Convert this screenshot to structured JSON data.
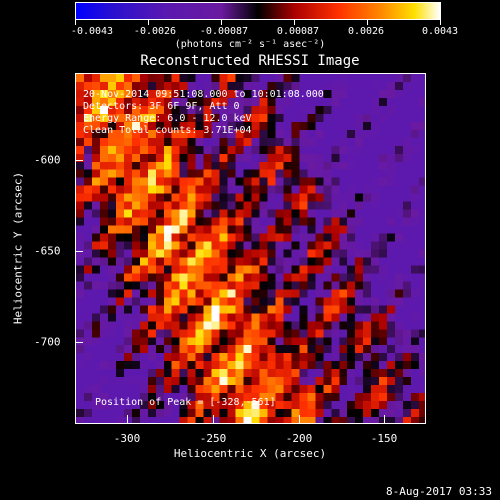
{
  "colorbar": {
    "tick_labels": [
      "-0.0043",
      "-0.0026",
      "-0.00087",
      "0.00087",
      "0.0026",
      "0.0043"
    ],
    "unit": "(photons cm⁻² s⁻¹ asec⁻²)",
    "range": [
      -0.0043,
      0.0043
    ]
  },
  "title": "Reconstructed RHESSI Image",
  "info": {
    "line1": "20-Nov-2014 09:51:08.000 to 10:01:08.000",
    "line2": "Detectors: 3F 6F 9F, Att 0",
    "line3": "Energy Range: 6.0 - 12.0 keV",
    "line4": "Clean  Total counts: 3.71E+04"
  },
  "peak": "Position of Peak = [-328,-561]",
  "axes": {
    "x_label": "Heliocentric X (arcsec)",
    "y_label": "Heliocentric Y (arcsec)",
    "x_ticks": [
      "-300",
      "-250",
      "-200",
      "-150"
    ],
    "x_tick_values": [
      -300,
      -250,
      -200,
      -150
    ],
    "y_ticks": [
      "-600",
      "-650",
      "-700"
    ],
    "y_tick_values": [
      -600,
      -650,
      -700
    ],
    "x_range": [
      -330,
      -127
    ],
    "y_range": [
      -745,
      -557
    ]
  },
  "timestamp": "8-Aug-2017 03:33"
}
